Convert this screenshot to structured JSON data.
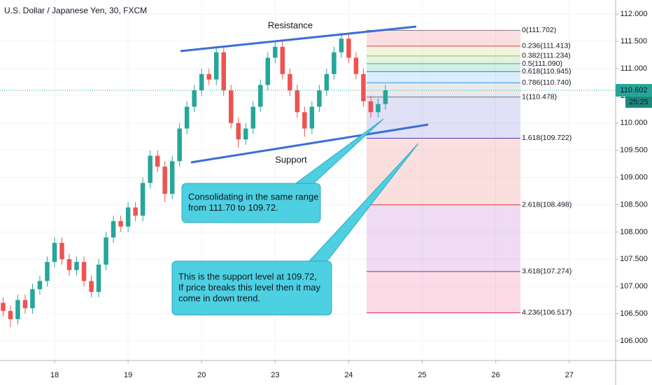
{
  "chart_data": {
    "type": "candlestick",
    "title": "U.S. Dollar / Japanese Yen, 30, FXCM",
    "up_color": "#26a69a",
    "down_color": "#ef5350",
    "grid": true,
    "x": [
      -0.7,
      -0.6,
      -0.5,
      -0.4,
      -0.3,
      -0.2,
      -0.1,
      0.0,
      0.1,
      0.2,
      0.3,
      0.4,
      0.5,
      0.6,
      0.7,
      0.8,
      0.9,
      1.0,
      1.1,
      1.2,
      1.3,
      1.4,
      1.5,
      1.6,
      1.7,
      1.8,
      1.9,
      2.0,
      2.1,
      2.2,
      2.3,
      2.4,
      2.5,
      2.6,
      2.7,
      2.8,
      2.9,
      3.0,
      3.1,
      3.2,
      3.3,
      3.4,
      3.5,
      3.6,
      3.7,
      3.8,
      3.9,
      4.0,
      4.1,
      4.2,
      4.3,
      4.4,
      4.5
    ],
    "open": [
      106.7,
      106.55,
      106.4,
      106.75,
      106.6,
      106.95,
      107.1,
      107.45,
      107.8,
      107.5,
      107.3,
      107.45,
      107.1,
      106.9,
      107.4,
      107.9,
      108.2,
      108.1,
      108.45,
      108.3,
      108.9,
      109.4,
      109.2,
      108.7,
      109.3,
      109.9,
      110.3,
      110.6,
      110.9,
      110.8,
      111.3,
      110.6,
      110.0,
      109.7,
      109.9,
      110.3,
      110.7,
      111.2,
      111.4,
      110.9,
      110.6,
      110.2,
      109.9,
      110.3,
      110.6,
      110.9,
      111.3,
      111.55,
      111.2,
      110.9,
      110.4,
      110.2,
      110.35
    ],
    "high": [
      106.8,
      106.65,
      106.85,
      106.85,
      107.05,
      107.2,
      107.55,
      107.9,
      107.9,
      107.6,
      107.55,
      107.55,
      107.2,
      107.5,
      108.0,
      108.3,
      108.3,
      108.55,
      108.55,
      109.0,
      109.5,
      109.5,
      109.3,
      109.4,
      110.0,
      110.4,
      110.7,
      111.0,
      111.0,
      111.4,
      111.4,
      110.7,
      110.1,
      110.0,
      110.4,
      110.8,
      111.3,
      111.5,
      111.5,
      111.0,
      110.7,
      110.3,
      110.4,
      110.7,
      111.0,
      111.4,
      111.65,
      111.65,
      111.3,
      111.0,
      110.5,
      110.45,
      110.7
    ],
    "low": [
      106.45,
      106.25,
      106.3,
      106.5,
      106.5,
      106.85,
      107.0,
      107.35,
      107.4,
      107.2,
      107.2,
      107.0,
      106.8,
      106.8,
      107.3,
      107.8,
      108.0,
      108.0,
      108.2,
      108.2,
      108.8,
      109.1,
      108.55,
      108.6,
      109.2,
      109.8,
      110.2,
      110.5,
      110.7,
      110.7,
      110.5,
      109.9,
      109.55,
      109.6,
      109.8,
      110.2,
      110.6,
      111.1,
      110.8,
      110.5,
      110.1,
      109.75,
      109.8,
      110.2,
      110.5,
      110.8,
      111.2,
      111.1,
      110.8,
      110.3,
      110.1,
      110.1,
      110.25
    ],
    "close": [
      106.55,
      106.4,
      106.75,
      106.6,
      106.95,
      107.1,
      107.45,
      107.8,
      107.5,
      107.3,
      107.45,
      107.1,
      106.9,
      107.4,
      107.9,
      108.2,
      108.1,
      108.45,
      108.3,
      108.9,
      109.4,
      109.2,
      108.7,
      109.3,
      109.9,
      110.3,
      110.6,
      110.9,
      110.8,
      111.3,
      110.6,
      110.0,
      109.7,
      109.9,
      110.3,
      110.7,
      111.2,
      111.4,
      110.9,
      110.6,
      110.2,
      109.9,
      110.3,
      110.6,
      110.9,
      111.3,
      111.55,
      111.2,
      110.9,
      110.4,
      110.2,
      110.35,
      110.6
    ],
    "xlim": [
      -0.742,
      7.63
    ],
    "xticks": [
      {
        "value": 0,
        "label": "18"
      },
      {
        "value": 1,
        "label": "19"
      },
      {
        "value": 2,
        "label": "20"
      },
      {
        "value": 3,
        "label": "23"
      },
      {
        "value": 4,
        "label": "24"
      },
      {
        "value": 5,
        "label": "25"
      },
      {
        "value": 6,
        "label": "26"
      },
      {
        "value": 7,
        "label": "27"
      }
    ],
    "ylim": [
      105.64,
      112.26
    ],
    "yticks": [
      {
        "value": 106,
        "label": "106.000"
      },
      {
        "value": 106.5,
        "label": "106.500"
      },
      {
        "value": 107,
        "label": "107.000"
      },
      {
        "value": 107.5,
        "label": "107.500"
      },
      {
        "value": 108,
        "label": "108.000"
      },
      {
        "value": 108.5,
        "label": "108.500"
      },
      {
        "value": 109,
        "label": "109.000"
      },
      {
        "value": 109.5,
        "label": "109.500"
      },
      {
        "value": 110,
        "label": "110.000"
      },
      {
        "value": 110.5,
        "label": "110.500"
      },
      {
        "value": 111,
        "label": "111.000"
      },
      {
        "value": 111.5,
        "label": "111.500"
      },
      {
        "value": 112,
        "label": "112.000"
      }
    ],
    "last_price": 110.602,
    "countdown": "25:25",
    "fib_levels": [
      {
        "label": "0(111.702)",
        "value": 111.702,
        "color": "#787b86"
      },
      {
        "label": "0.236(111.413)",
        "value": 111.413,
        "color": "#f23645"
      },
      {
        "label": "0.382(111.234)",
        "value": 111.234,
        "color": "#a8c32f"
      },
      {
        "label": "0.5(111.090)",
        "value": 111.09,
        "color": "#4caf50"
      },
      {
        "label": "0.618(110.945)",
        "value": 110.945,
        "color": "#089981"
      },
      {
        "label": "0.786(110.740)",
        "value": 110.74,
        "color": "#2196f3"
      },
      {
        "label": "1(110.478)",
        "value": 110.478,
        "color": "#787b86"
      },
      {
        "label": "1.618(109.722)",
        "value": 109.722,
        "color": "#3f3fc8"
      },
      {
        "label": "2.618(108.498)",
        "value": 108.498,
        "color": "#e53935"
      },
      {
        "label": "3.618(107.274)",
        "value": 107.274,
        "color": "#9c27b0"
      },
      {
        "label": "4.236(106.517)",
        "value": 106.517,
        "color": "#e91e63"
      }
    ],
    "annotations": {
      "resistance": "Resistance",
      "support": "Support",
      "notes": [
        [
          "Consolidating in the same range",
          "from 111.70 to 109.72."
        ],
        [
          "This is the support level at 109.72,",
          "If price breaks this level then it may",
          "come in down trend."
        ]
      ]
    }
  }
}
